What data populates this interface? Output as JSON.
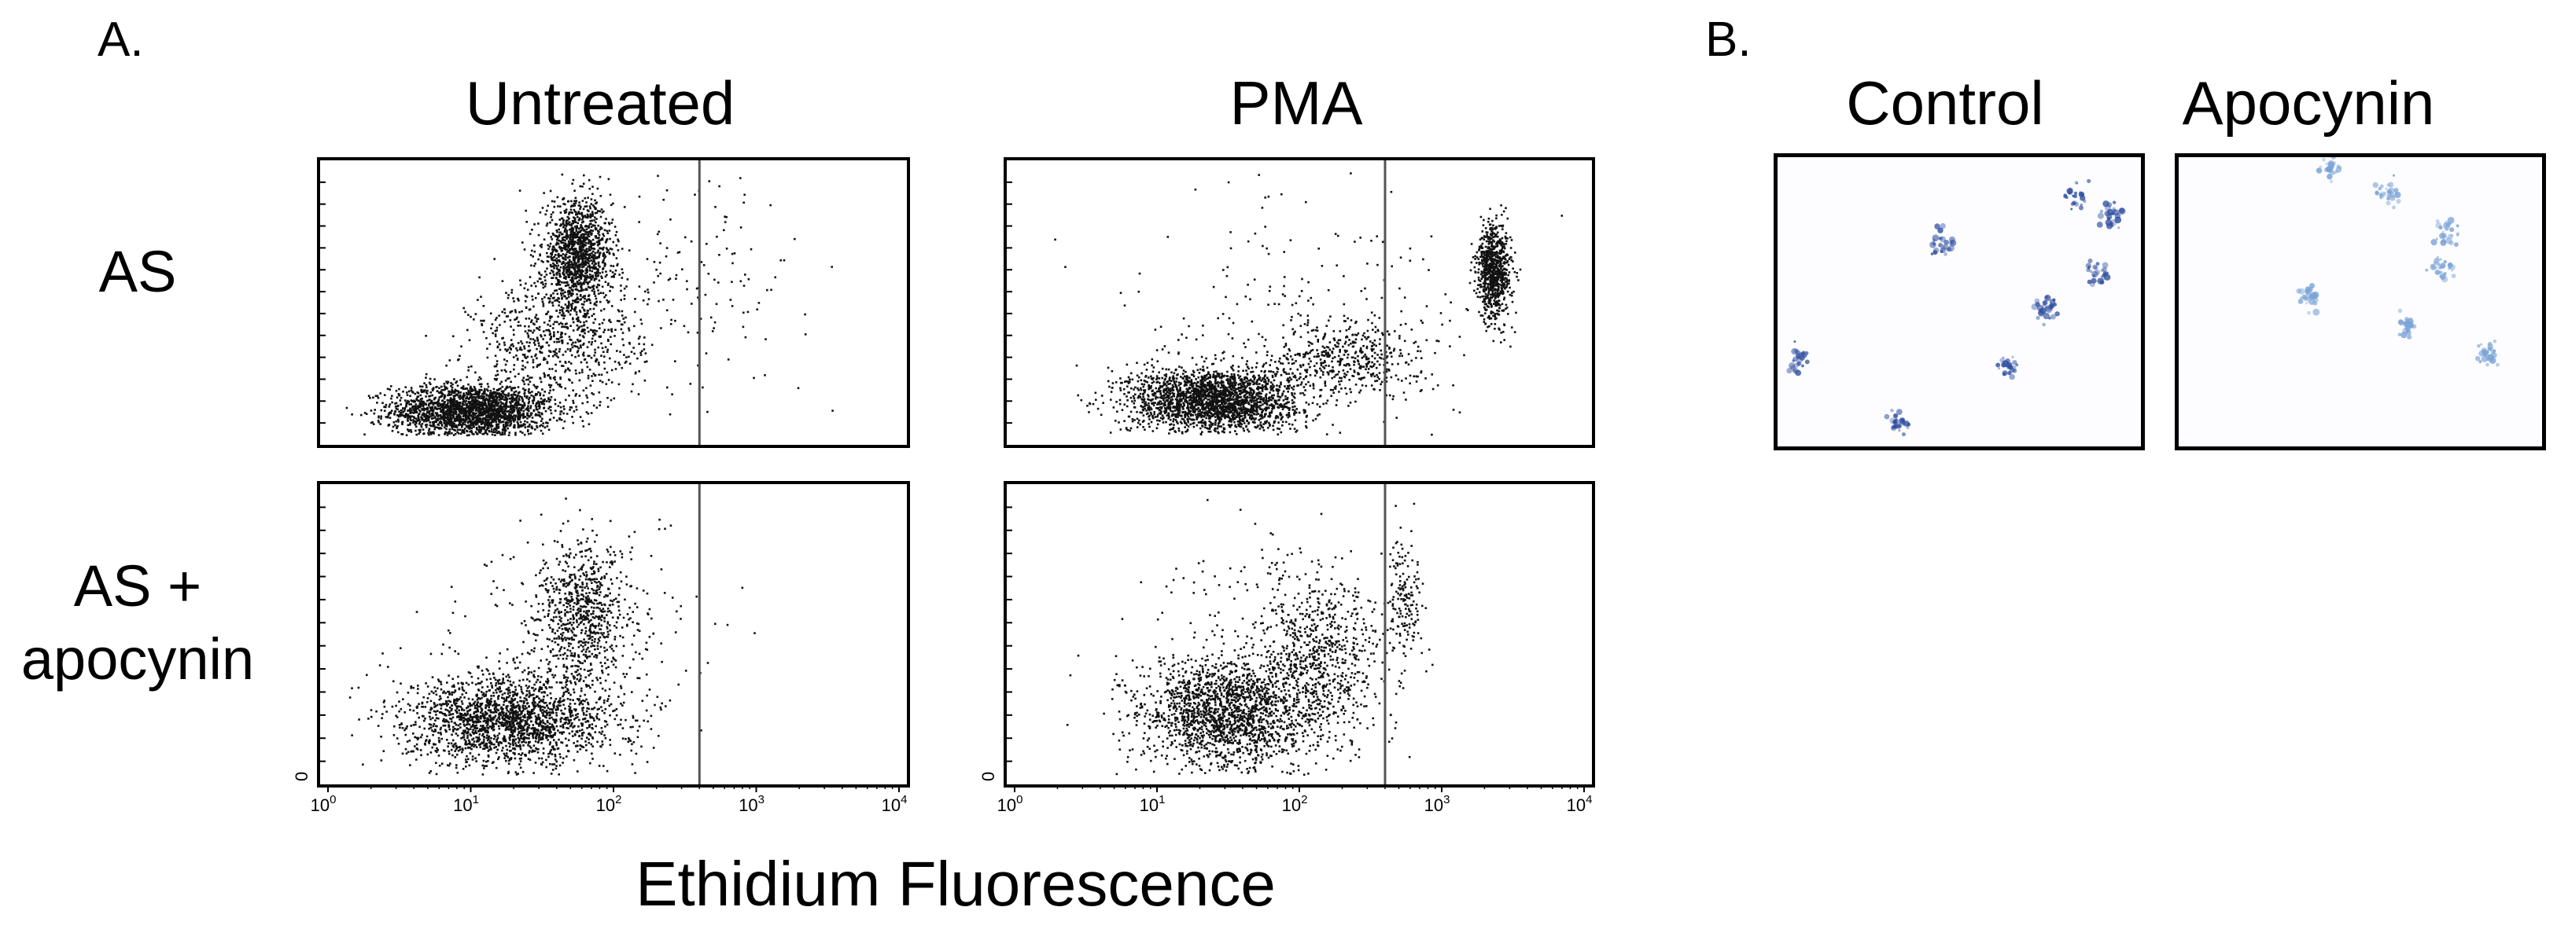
{
  "panel_a": {
    "label": "A.",
    "columns": [
      "Untreated",
      "PMA"
    ],
    "rows": [
      {
        "lines": [
          "AS"
        ]
      },
      {
        "lines": [
          "AS +",
          "apocynin"
        ]
      }
    ],
    "x_axis_title": "Ethidium Fluorescence",
    "y_zero_label": "0",
    "gate_line_x": 400
  },
  "panel_b": {
    "label": "B.",
    "columns": [
      "Control",
      "Apocynin"
    ]
  },
  "chart_data": {
    "type": "scatter",
    "x_scale": "log",
    "xlim": [
      1,
      10000
    ],
    "x_ticks": [
      {
        "base": "10",
        "exp": "0"
      },
      {
        "base": "10",
        "exp": "1"
      },
      {
        "base": "10",
        "exp": "2"
      },
      {
        "base": "10",
        "exp": "3"
      },
      {
        "base": "10",
        "exp": "4"
      }
    ],
    "ylim": [
      0,
      1
    ],
    "grid": false,
    "panels": [
      {
        "row": "AS",
        "column": "Untreated",
        "clusters": [
          {
            "x": 10,
            "y": 0.1,
            "sx": 0.28,
            "sy": 0.05,
            "n": 2200
          },
          {
            "x": 55,
            "y": 0.68,
            "sx": 0.12,
            "sy": 0.1,
            "n": 1300
          },
          {
            "x": 40,
            "y": 0.35,
            "sx": 0.3,
            "sy": 0.12,
            "n": 700
          },
          {
            "x": 300,
            "y": 0.6,
            "sx": 0.45,
            "sy": 0.2,
            "n": 160
          }
        ]
      },
      {
        "row": "AS",
        "column": "PMA",
        "clusters": [
          {
            "x": 25,
            "y": 0.14,
            "sx": 0.3,
            "sy": 0.06,
            "n": 2300
          },
          {
            "x": 220,
            "y": 0.3,
            "sx": 0.25,
            "sy": 0.07,
            "n": 450
          },
          {
            "x": 2300,
            "y": 0.62,
            "sx": 0.06,
            "sy": 0.09,
            "n": 800
          },
          {
            "x": 80,
            "y": 0.4,
            "sx": 0.6,
            "sy": 0.25,
            "n": 220
          }
        ]
      },
      {
        "row": "AS + apocynin",
        "column": "Untreated",
        "clusters": [
          {
            "x": 18,
            "y": 0.2,
            "sx": 0.35,
            "sy": 0.08,
            "n": 1900
          },
          {
            "x": 60,
            "y": 0.58,
            "sx": 0.15,
            "sy": 0.12,
            "n": 650
          },
          {
            "x": 60,
            "y": 0.42,
            "sx": 0.4,
            "sy": 0.22,
            "n": 350
          }
        ]
      },
      {
        "row": "AS + apocynin",
        "column": "PMA",
        "clusters": [
          {
            "x": 30,
            "y": 0.22,
            "sx": 0.3,
            "sy": 0.1,
            "n": 1800
          },
          {
            "x": 140,
            "y": 0.42,
            "sx": 0.22,
            "sy": 0.15,
            "n": 700
          },
          {
            "x": 550,
            "y": 0.62,
            "sx": 0.06,
            "sy": 0.12,
            "n": 160
          },
          {
            "x": 60,
            "y": 0.45,
            "sx": 0.5,
            "sy": 0.25,
            "n": 200
          }
        ]
      }
    ]
  },
  "micrographs": [
    {
      "column": "Control",
      "stain_color": "#2f4fa0",
      "cells": [
        [
          0.45,
          0.3
        ],
        [
          0.82,
          0.14
        ],
        [
          0.92,
          0.2
        ],
        [
          0.88,
          0.4
        ],
        [
          0.74,
          0.52
        ],
        [
          0.06,
          0.7
        ],
        [
          0.63,
          0.72
        ],
        [
          0.33,
          0.92
        ]
      ]
    },
    {
      "column": "Apocynin",
      "stain_color": "#7aa2d6",
      "cells": [
        [
          0.42,
          0.04
        ],
        [
          0.58,
          0.12
        ],
        [
          0.74,
          0.26
        ],
        [
          0.72,
          0.38
        ],
        [
          0.36,
          0.48
        ],
        [
          0.63,
          0.58
        ],
        [
          0.85,
          0.68
        ]
      ]
    }
  ]
}
